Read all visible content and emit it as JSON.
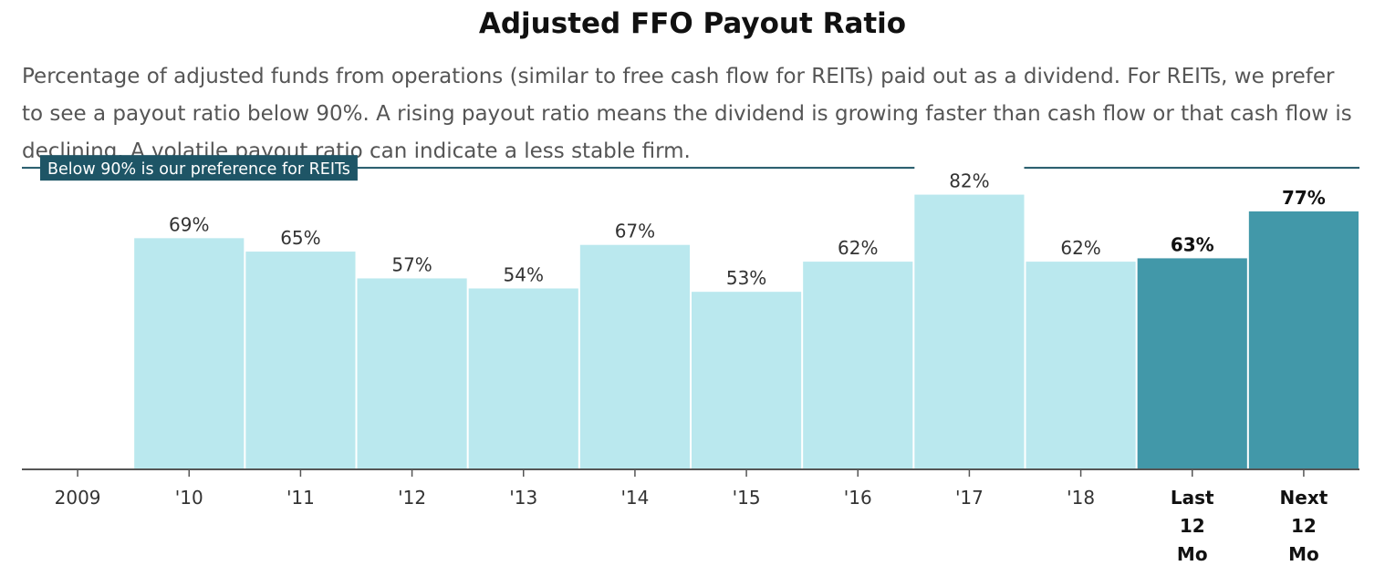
{
  "title": "Adjusted FFO Payout Ratio",
  "subtitle": "Percentage of adjusted funds from operations (similar to free cash flow for REITs) paid out as a dividend. For REITs, we prefer to see a payout ratio below 90%. A rising payout ratio means the dividend is growing faster than cash flow or that cash flow is declining. A volatile payout ratio can indicate a less stable firm.",
  "colors": {
    "historical_bar": "#bae8ee",
    "highlight_bar": "#4298a9",
    "reference_line": "#1e5566",
    "label_bg": "#1e5566",
    "axis": "#555555"
  },
  "chart_data": {
    "type": "bar",
    "categories": [
      "2009",
      "'10",
      "'11",
      "'12",
      "'13",
      "'14",
      "'15",
      "'16",
      "'17",
      "'18",
      "Last\n12\nMo",
      "Next\n12\nMo"
    ],
    "values": [
      null,
      69,
      65,
      57,
      54,
      67,
      53,
      62,
      82,
      62,
      63,
      77
    ],
    "value_labels": [
      "",
      "69%",
      "65%",
      "57%",
      "54%",
      "67%",
      "53%",
      "62%",
      "82%",
      "62%",
      "63%",
      "77%"
    ],
    "highlighted": [
      false,
      false,
      false,
      false,
      false,
      false,
      false,
      false,
      false,
      false,
      true,
      true
    ],
    "ylim": [
      0,
      90
    ],
    "reference_line": {
      "value": 90,
      "label": "Below 90% is our preference for REITs"
    },
    "grid": false,
    "legend": "none"
  }
}
